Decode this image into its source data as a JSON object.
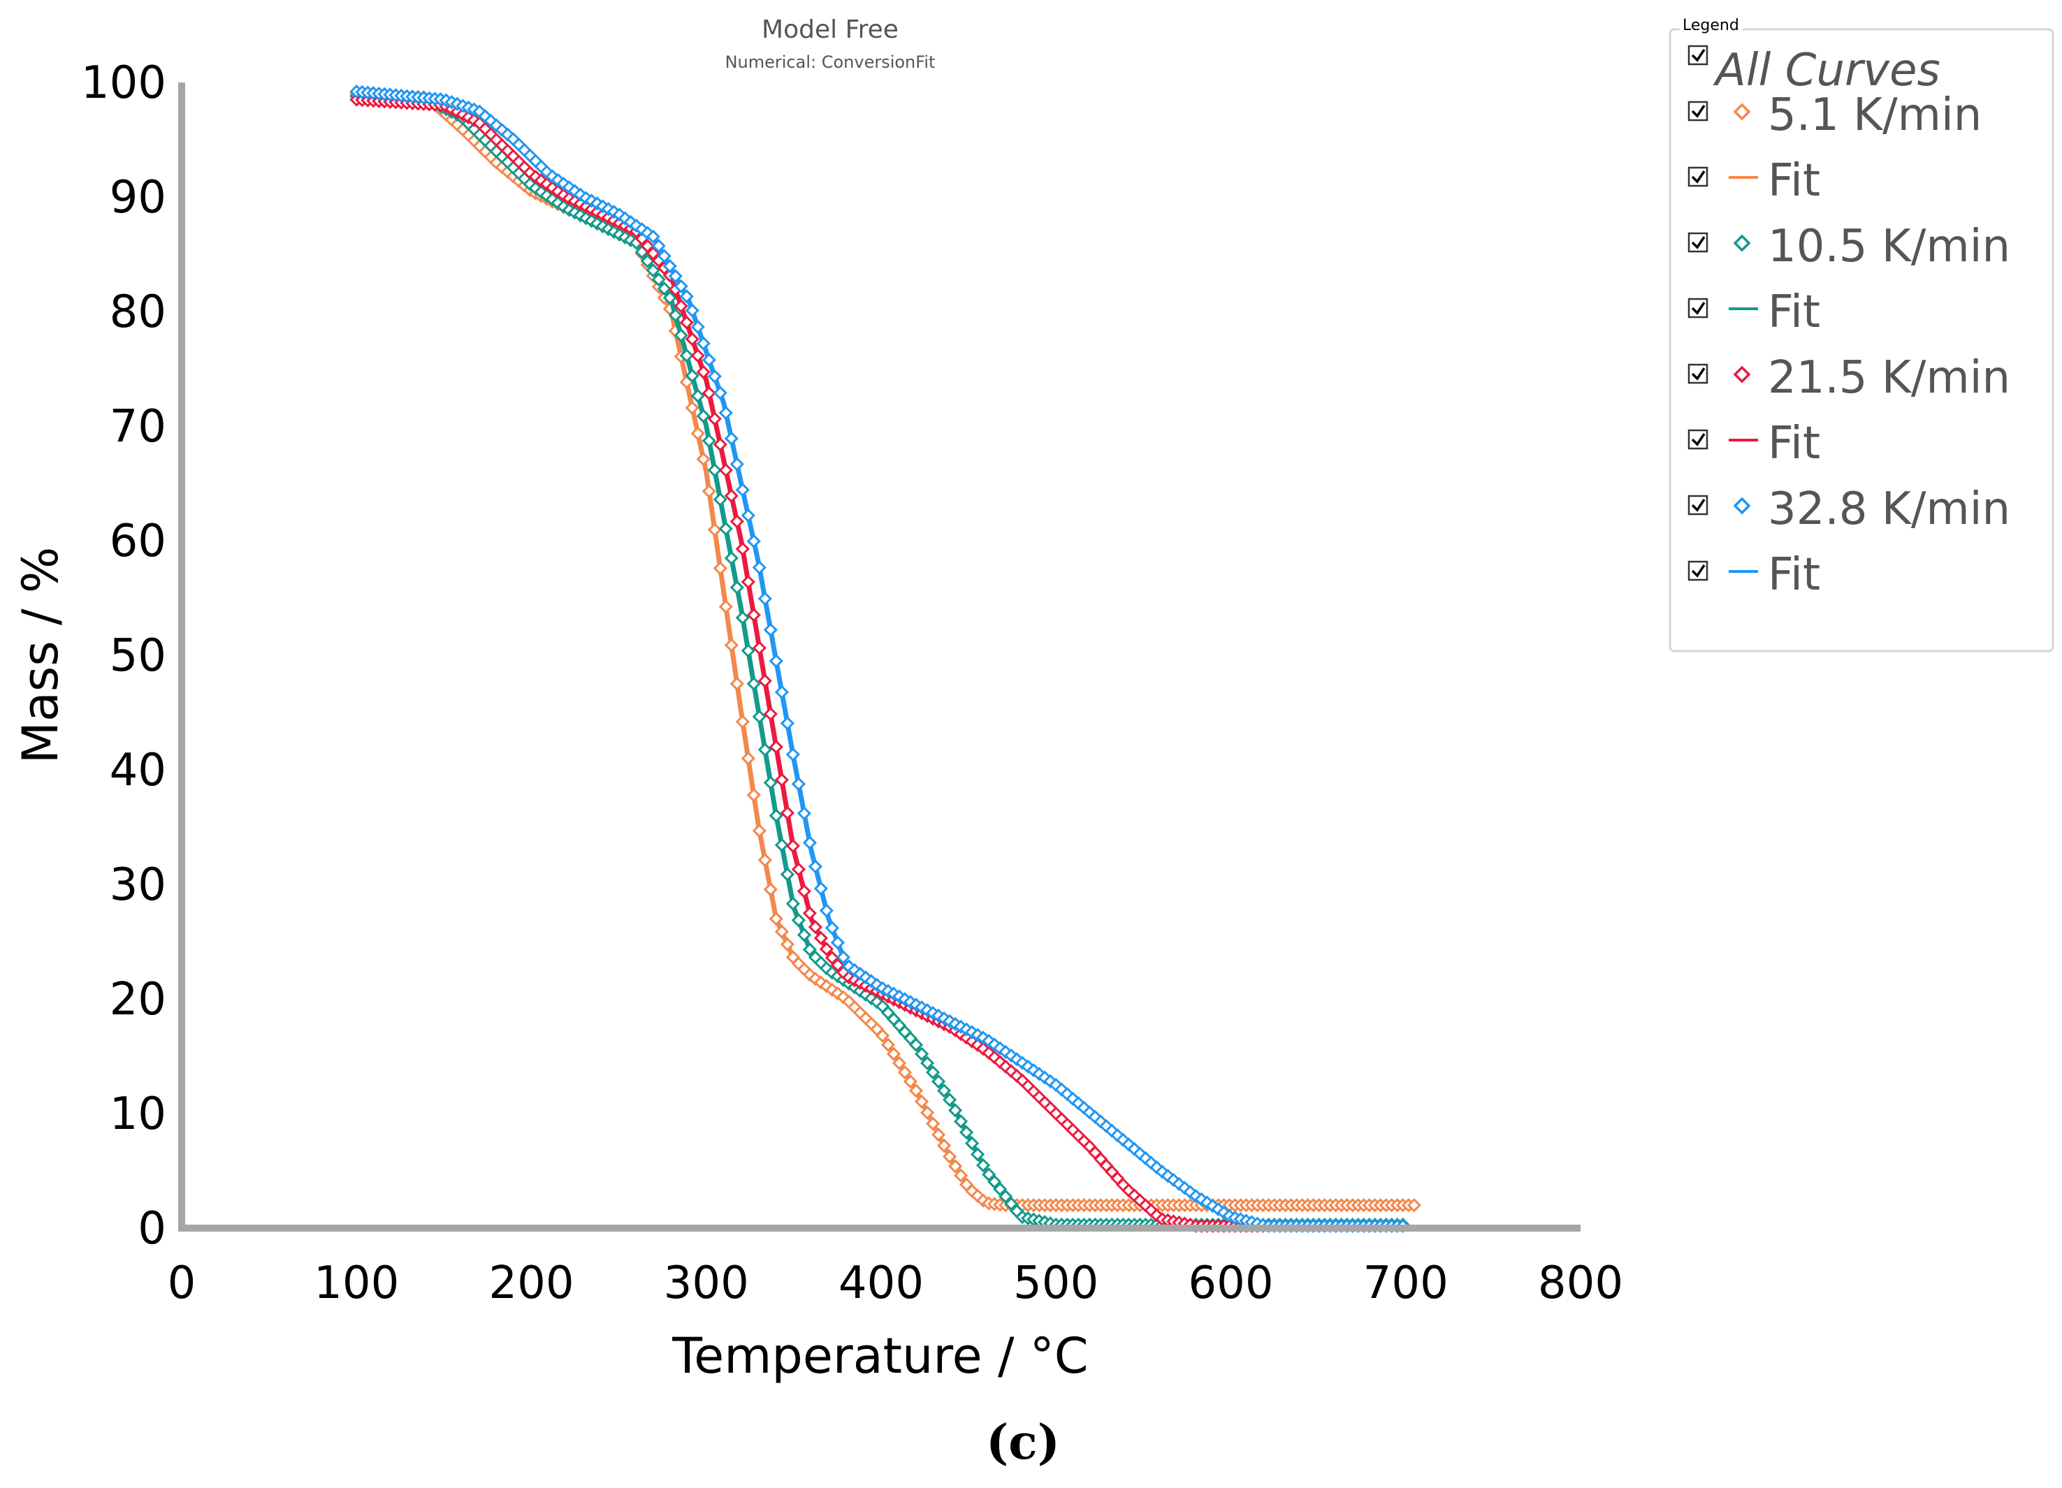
{
  "chart_data": {
    "type": "line",
    "title": "Model Free",
    "subtitle": "Numerical: ConversionFit",
    "xlabel": "Temperature / °C",
    "ylabel": "Mass / %",
    "caption": "(c)",
    "xlim": [
      0,
      800
    ],
    "ylim": [
      0,
      100
    ],
    "xticks": [
      "0",
      "100",
      "200",
      "300",
      "400",
      "500",
      "600",
      "700",
      "800"
    ],
    "yticks": [
      "0",
      "10",
      "20",
      "30",
      "40",
      "50",
      "60",
      "70",
      "80",
      "90",
      "100"
    ],
    "legend": {
      "title": "Legend",
      "all_label": "All Curves",
      "placement": "top-right outside"
    },
    "series": [
      {
        "name": "5.1 K/min",
        "fit_label": "Fit",
        "color": "#F4874B",
        "x": [
          100,
          140,
          160,
          180,
          200,
          220,
          240,
          260,
          280,
          300,
          320,
          330,
          340,
          350,
          360,
          380,
          400,
          420,
          440,
          450,
          460,
          470,
          480,
          500,
          550,
          600,
          650,
          700,
          705
        ],
        "y": [
          99,
          98.7,
          96,
          93,
          90.5,
          89,
          87.5,
          86,
          80,
          66,
          45,
          35,
          27,
          23.5,
          22,
          20,
          17,
          12,
          6,
          3.5,
          2.2,
          2,
          2,
          2,
          2,
          2,
          2,
          2,
          2
        ]
      },
      {
        "name": "10.5 K/min",
        "fit_label": "Fit",
        "color": "#129A8C",
        "x": [
          100,
          140,
          160,
          180,
          200,
          220,
          240,
          260,
          280,
          300,
          320,
          340,
          350,
          360,
          370,
          380,
          400,
          420,
          440,
          460,
          480,
          500,
          550,
          600,
          650,
          700
        ],
        "y": [
          98.8,
          98.5,
          97,
          94,
          91,
          89,
          87.5,
          86,
          81,
          70,
          54,
          36,
          28,
          24,
          22.5,
          21.5,
          19.5,
          16,
          11,
          5,
          1,
          0.3,
          0.3,
          0.3,
          0.3,
          0.3
        ]
      },
      {
        "name": "21.5 K/min",
        "fit_label": "Fit",
        "color": "#EC1A3E",
        "x": [
          100,
          150,
          170,
          200,
          220,
          240,
          260,
          280,
          300,
          320,
          340,
          350,
          360,
          370,
          380,
          400,
          420,
          440,
          460,
          480,
          500,
          520,
          540,
          560,
          580,
          600,
          650,
          700
        ],
        "y": [
          98.5,
          98,
          96.5,
          92,
          90,
          88.5,
          87,
          83,
          74,
          60,
          42,
          33,
          27,
          24,
          22,
          20.5,
          19,
          17.5,
          15.5,
          13,
          10,
          7,
          3.5,
          0.8,
          0.2,
          0.2,
          0.2,
          0.2
        ]
      },
      {
        "name": "32.8 K/min",
        "fit_label": "Fit",
        "color": "#2196F3",
        "x": [
          100,
          150,
          170,
          190,
          210,
          230,
          250,
          270,
          290,
          310,
          330,
          350,
          360,
          370,
          380,
          400,
          420,
          440,
          460,
          480,
          500,
          520,
          540,
          560,
          580,
          600,
          620,
          650,
          700
        ],
        "y": [
          99.2,
          98.5,
          97.5,
          95,
          92,
          90,
          88.5,
          86.5,
          81,
          72,
          58,
          41,
          33,
          27,
          23,
          21,
          19.5,
          18,
          16.5,
          14.5,
          12.5,
          10,
          7.5,
          5,
          2.8,
          1,
          0.2,
          0.2,
          0.2
        ]
      }
    ]
  }
}
